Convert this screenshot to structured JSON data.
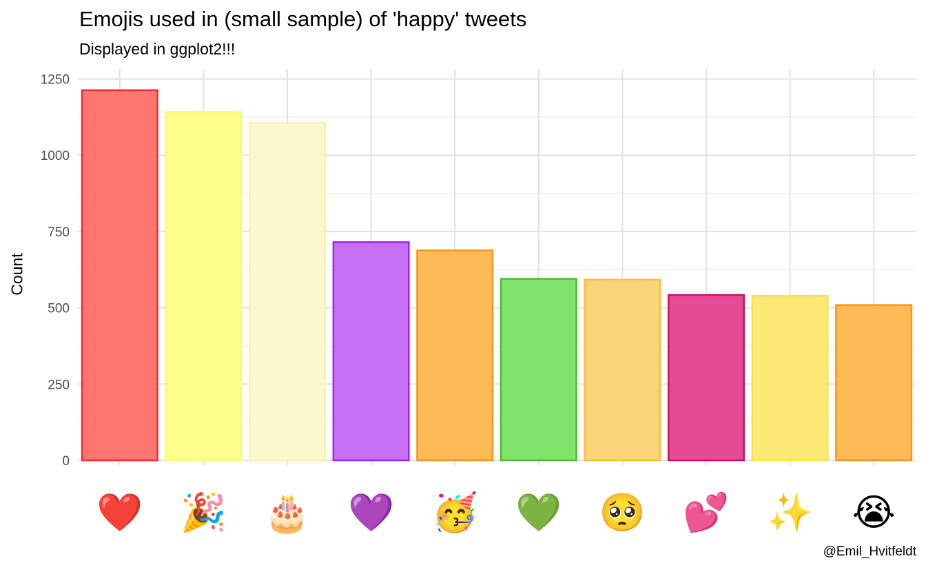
{
  "chart_data": {
    "type": "bar",
    "title": "Emojis used in (small sample) of 'happy' tweets",
    "subtitle": "Displayed in ggplot2!!!",
    "caption": "@Emil_Hvitfeldt",
    "xlabel": "",
    "ylabel": "Count",
    "ylim": [
      0,
      1250
    ],
    "y_ticks": [
      0,
      250,
      500,
      750,
      1000,
      1250
    ],
    "grid": true,
    "legend": "none",
    "categories": [
      {
        "emoji": "❤️",
        "icon": "red-heart-icon",
        "value": 1213,
        "fill": "#ff7670",
        "stroke": "#ef2d2d"
      },
      {
        "emoji": "🎉",
        "icon": "party-popper-icon",
        "value": 1142,
        "fill": "#ffff8c",
        "stroke": "#fcfb6a"
      },
      {
        "emoji": "🎂",
        "icon": "birthday-cake-icon",
        "value": 1106,
        "fill": "#fcf8cd",
        "stroke": "#fbf1a8"
      },
      {
        "emoji": "💜",
        "icon": "purple-heart-icon",
        "value": 715,
        "fill": "#c670f8",
        "stroke": "#a11ff0"
      },
      {
        "emoji": "🥳",
        "icon": "partying-face-icon",
        "value": 688,
        "fill": "#fdba55",
        "stroke": "#f9951d"
      },
      {
        "emoji": "💚",
        "icon": "green-heart-icon",
        "value": 595,
        "fill": "#80e36b",
        "stroke": "#43c12c"
      },
      {
        "emoji": "🥺",
        "icon": "pleading-face-icon",
        "value": 592,
        "fill": "#fbd577",
        "stroke": "#fbbf3a"
      },
      {
        "emoji": "💕",
        "icon": "two-hearts-icon",
        "value": 542,
        "fill": "#e64c94",
        "stroke": "#c90f6a"
      },
      {
        "emoji": "✨",
        "icon": "sparkles-icon",
        "value": 539,
        "fill": "#fdea76",
        "stroke": "#fbe046"
      },
      {
        "emoji": "😭",
        "icon": "loudly-crying-face-icon",
        "value": 509,
        "fill": "#fdba55",
        "stroke": "#f9951d"
      }
    ]
  }
}
